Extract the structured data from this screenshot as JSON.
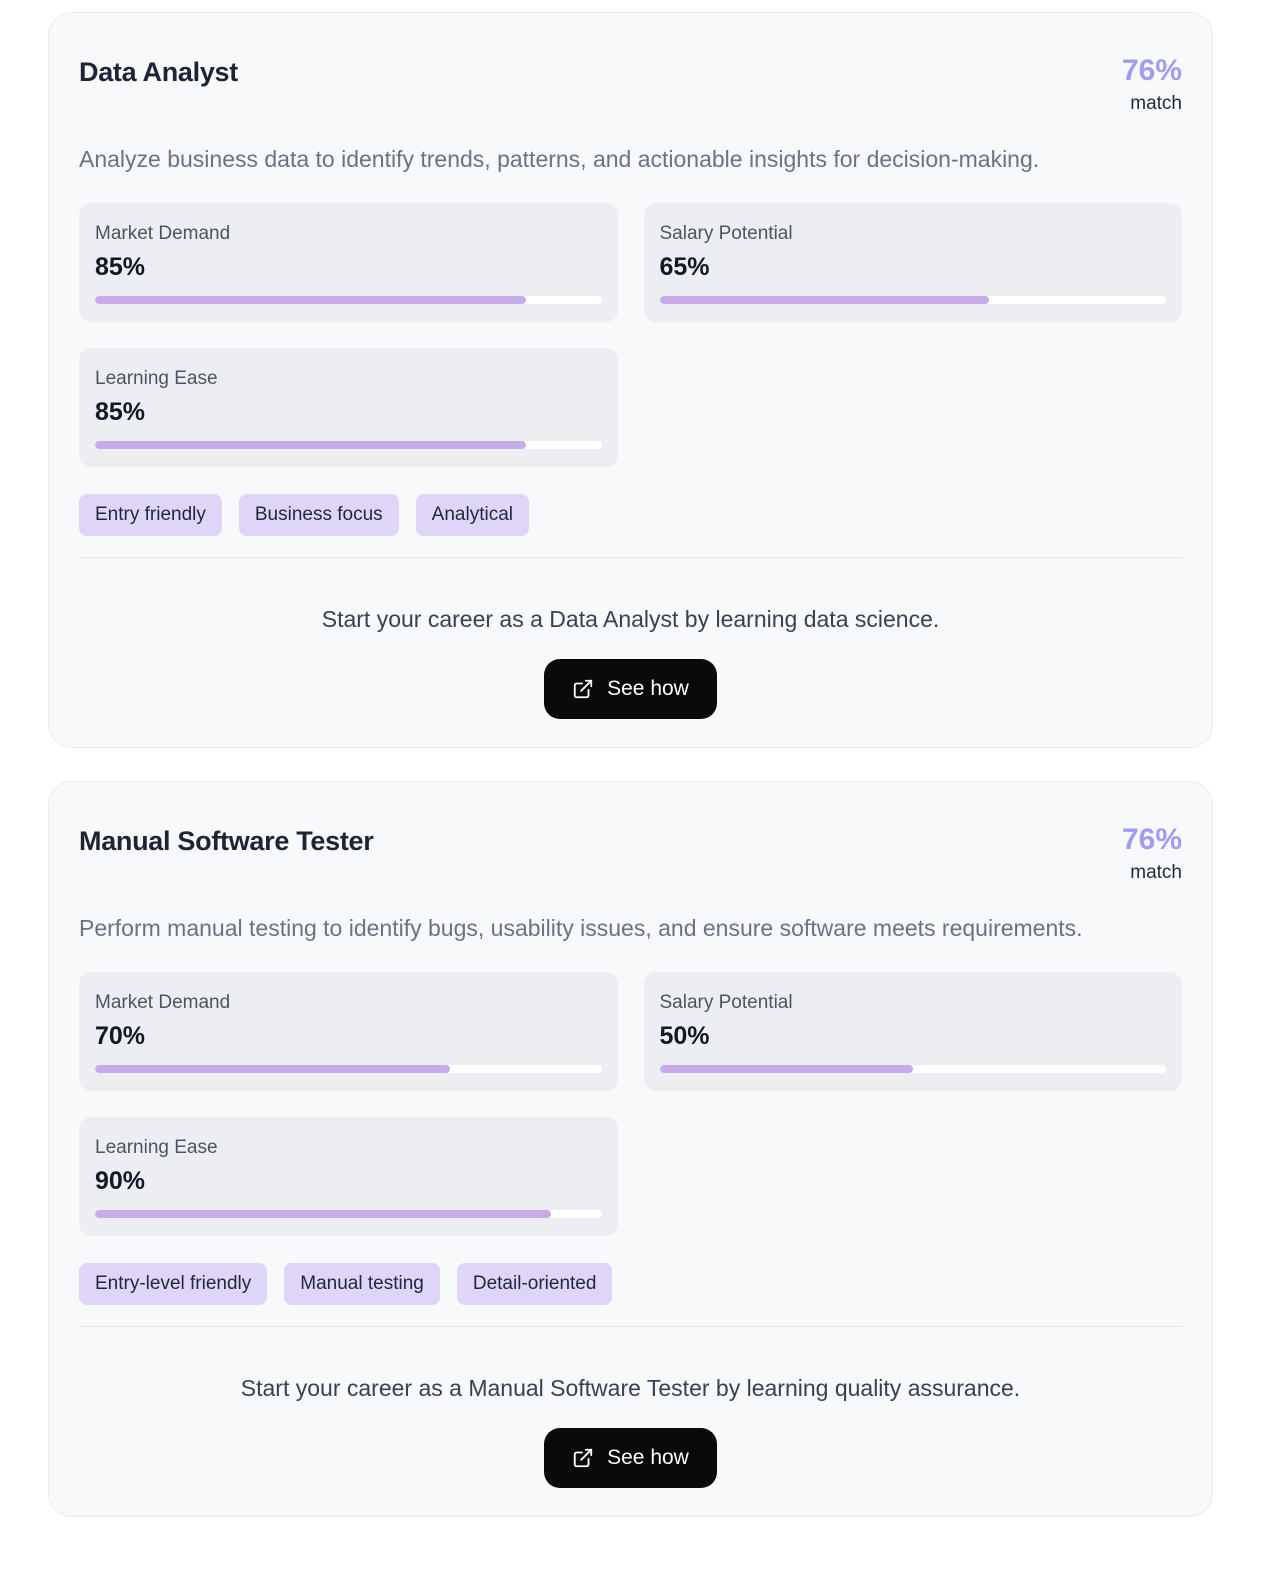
{
  "colors": {
    "match_percent": "#a29bf3",
    "progress_fill": "#c8acea",
    "tag_background": "#ded5f8",
    "button_background": "#0a0a0a"
  },
  "cards": [
    {
      "title": "Data Analyst",
      "match": {
        "value": "76%",
        "label": "match"
      },
      "description": "Analyze business data to identify trends, patterns, and actionable insights for decision-making.",
      "stats": [
        {
          "label": "Market Demand",
          "value": "85%",
          "percent": 85
        },
        {
          "label": "Salary Potential",
          "value": "65%",
          "percent": 65
        },
        {
          "label": "Learning Ease",
          "value": "85%",
          "percent": 85
        }
      ],
      "tags": [
        "Entry friendly",
        "Business focus",
        "Analytical"
      ],
      "cta": "Start your career as a Data Analyst by learning data science.",
      "button": {
        "label": "See how",
        "icon": "external-link-icon"
      }
    },
    {
      "title": "Manual Software Tester",
      "match": {
        "value": "76%",
        "label": "match"
      },
      "description": "Perform manual testing to identify bugs, usability issues, and ensure software meets requirements.",
      "stats": [
        {
          "label": "Market Demand",
          "value": "70%",
          "percent": 70
        },
        {
          "label": "Salary Potential",
          "value": "50%",
          "percent": 50
        },
        {
          "label": "Learning Ease",
          "value": "90%",
          "percent": 90
        }
      ],
      "tags": [
        "Entry-level friendly",
        "Manual testing",
        "Detail-oriented"
      ],
      "cta": "Start your career as a Manual Software Tester by learning quality assurance.",
      "button": {
        "label": "See how",
        "icon": "external-link-icon"
      }
    }
  ]
}
